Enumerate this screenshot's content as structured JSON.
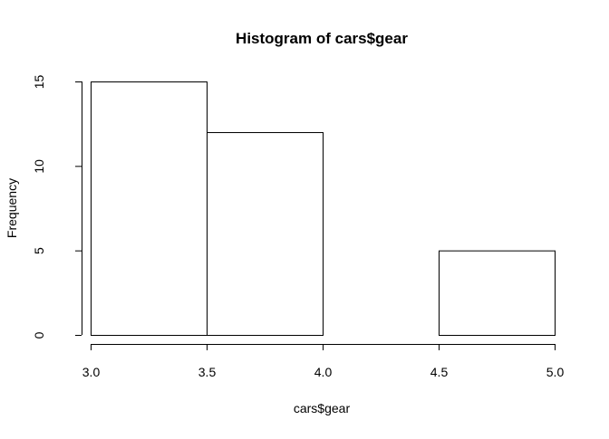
{
  "chart_data": {
    "type": "bar",
    "subtype": "histogram",
    "title": "Histogram of cars$gear",
    "xlabel": "cars$gear",
    "ylabel": "Frequency",
    "bins": [
      {
        "start": 3.0,
        "end": 3.5,
        "count": 15
      },
      {
        "start": 3.5,
        "end": 4.0,
        "count": 12
      },
      {
        "start": 4.0,
        "end": 4.5,
        "count": 0
      },
      {
        "start": 4.5,
        "end": 5.0,
        "count": 5
      }
    ],
    "x_ticks": [
      "3.0",
      "3.5",
      "4.0",
      "4.5",
      "5.0"
    ],
    "x_tick_values": [
      3.0,
      3.5,
      4.0,
      4.5,
      5.0
    ],
    "y_ticks": [
      "0",
      "5",
      "10",
      "15"
    ],
    "y_tick_values": [
      0,
      5,
      10,
      15
    ],
    "xlim": [
      3.0,
      5.0
    ],
    "ylim": [
      0,
      15
    ],
    "grid": false,
    "bar_fill": "#ffffff",
    "bar_stroke": "#000000"
  }
}
